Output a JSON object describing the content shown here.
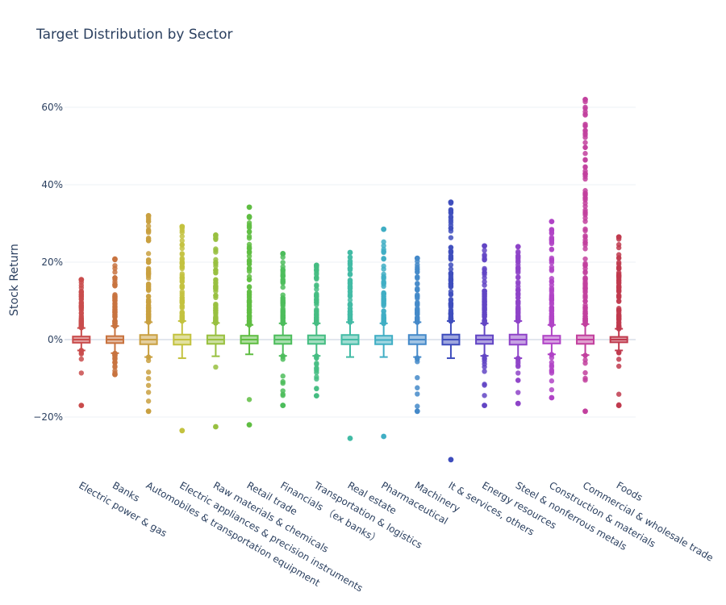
{
  "chart_data": {
    "type": "box",
    "title": "Target Distribution by Sector",
    "xlabel": "",
    "ylabel": "Stock Return",
    "ylim": [
      -0.33,
      0.7
    ],
    "yticks": [
      -0.2,
      0,
      0.2,
      0.4,
      0.6
    ],
    "ytick_labels": [
      "−20%",
      "0%",
      "20%",
      "40%",
      "60%"
    ],
    "grid": true,
    "legend": "none",
    "x_tick_rotation": 30,
    "categories": [
      "Electric power & gas",
      "Banks",
      "Automobiles & transportation equipment",
      "Electric appliances & precision instruments",
      "Raw materials & chemicals",
      "Retail trade",
      "Financials （ex banks）",
      "Transportation & logistics",
      "Real estate",
      "Pharmaceutical",
      "Machinery",
      "It & services, others",
      "Energy resources",
      "Steel & nonferrous metals",
      "Construction & materials",
      "Commercial & wholesale trade",
      "Foods"
    ],
    "series": [
      {
        "color": "#c94c4c",
        "q1": -0.008,
        "median": 0.0,
        "q3": 0.008,
        "lower_fence": -0.028,
        "upper_fence": 0.03,
        "max": 0.155,
        "min": -0.17
      },
      {
        "color": "#c8733f",
        "q1": -0.009,
        "median": 0.0,
        "q3": 0.009,
        "lower_fence": -0.035,
        "upper_fence": 0.035,
        "max": 0.208,
        "min": -0.09
      },
      {
        "color": "#c9a040",
        "q1": -0.012,
        "median": 0.0,
        "q3": 0.012,
        "lower_fence": -0.045,
        "upper_fence": 0.045,
        "max": 0.32,
        "min": -0.185
      },
      {
        "color": "#c3c23f",
        "q1": -0.013,
        "median": 0.0,
        "q3": 0.013,
        "lower_fence": -0.048,
        "upper_fence": 0.048,
        "max": 0.292,
        "min": -0.235
      },
      {
        "color": "#98c040",
        "q1": -0.011,
        "median": 0.0,
        "q3": 0.011,
        "lower_fence": -0.043,
        "upper_fence": 0.043,
        "max": 0.27,
        "min": -0.225
      },
      {
        "color": "#5fbd42",
        "q1": -0.01,
        "median": 0.0,
        "q3": 0.01,
        "lower_fence": -0.038,
        "upper_fence": 0.038,
        "max": 0.342,
        "min": -0.22
      },
      {
        "color": "#4dbd5c",
        "q1": -0.011,
        "median": 0.0,
        "q3": 0.011,
        "lower_fence": -0.042,
        "upper_fence": 0.042,
        "max": 0.222,
        "min": -0.17
      },
      {
        "color": "#45bd82",
        "q1": -0.011,
        "median": 0.0,
        "q3": 0.011,
        "lower_fence": -0.042,
        "upper_fence": 0.042,
        "max": 0.192,
        "min": -0.145
      },
      {
        "color": "#42bba5",
        "q1": -0.012,
        "median": 0.0,
        "q3": 0.012,
        "lower_fence": -0.045,
        "upper_fence": 0.045,
        "max": 0.225,
        "min": -0.255
      },
      {
        "color": "#40aec4",
        "q1": -0.012,
        "median": -0.001,
        "q3": 0.01,
        "lower_fence": -0.045,
        "upper_fence": 0.042,
        "max": 0.285,
        "min": -0.25
      },
      {
        "color": "#4489c9",
        "q1": -0.012,
        "median": 0.0,
        "q3": 0.012,
        "lower_fence": -0.045,
        "upper_fence": 0.045,
        "max": 0.21,
        "min": -0.185
      },
      {
        "color": "#3e4dbd",
        "q1": -0.013,
        "median": 0.0,
        "q3": 0.013,
        "lower_fence": -0.048,
        "upper_fence": 0.048,
        "max": 0.355,
        "min": -0.31
      },
      {
        "color": "#6245c4",
        "q1": -0.011,
        "median": 0.0,
        "q3": 0.011,
        "lower_fence": -0.042,
        "upper_fence": 0.042,
        "max": 0.242,
        "min": -0.17
      },
      {
        "color": "#8e43c8",
        "q1": -0.013,
        "median": 0.0,
        "q3": 0.013,
        "lower_fence": -0.048,
        "upper_fence": 0.048,
        "max": 0.24,
        "min": -0.165
      },
      {
        "color": "#b043c6",
        "q1": -0.01,
        "median": 0.0,
        "q3": 0.01,
        "lower_fence": -0.038,
        "upper_fence": 0.038,
        "max": 0.305,
        "min": -0.15
      },
      {
        "color": "#c2409e",
        "q1": -0.011,
        "median": 0.0,
        "q3": 0.011,
        "lower_fence": -0.04,
        "upper_fence": 0.04,
        "max": 0.62,
        "min": -0.185
      },
      {
        "color": "#c03a4e",
        "q1": -0.007,
        "median": 0.0,
        "q3": 0.007,
        "lower_fence": -0.028,
        "upper_fence": 0.028,
        "max": 0.265,
        "min": -0.17
      }
    ]
  }
}
